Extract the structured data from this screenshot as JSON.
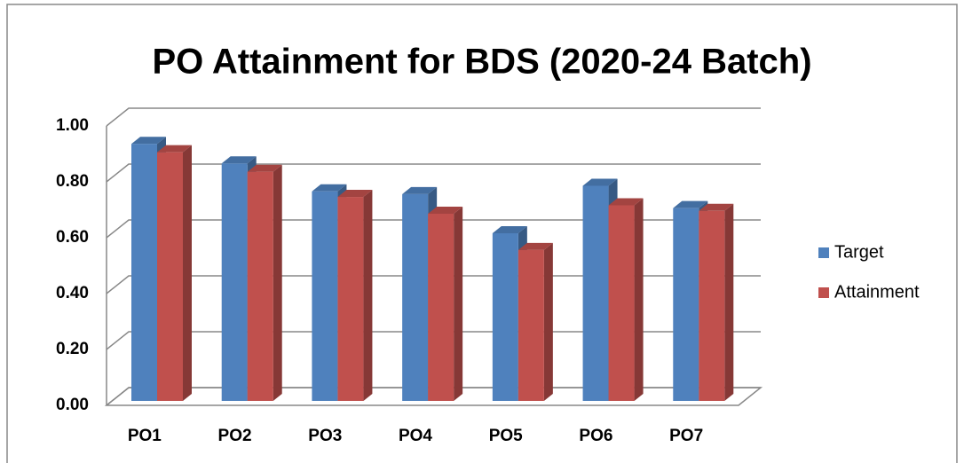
{
  "chart_data": {
    "type": "bar3d",
    "title": "PO Attainment for BDS (2020-24 Batch)",
    "categories": [
      "PO1",
      "PO2",
      "PO3",
      "PO4",
      "PO5",
      "PO6",
      "PO7"
    ],
    "series": [
      {
        "name": "Target",
        "color": "#4f81bd",
        "values": [
          0.92,
          0.85,
          0.75,
          0.74,
          0.6,
          0.77,
          0.69
        ]
      },
      {
        "name": "Attainment",
        "color": "#c0504d",
        "values": [
          0.89,
          0.82,
          0.73,
          0.67,
          0.54,
          0.7,
          0.68
        ]
      }
    ],
    "ylim": [
      0,
      1
    ],
    "yticks": [
      {
        "value": 0,
        "label": "0.00"
      },
      {
        "value": 0.2,
        "label": "0.20"
      },
      {
        "value": 0.4,
        "label": "0.40"
      },
      {
        "value": 0.6,
        "label": "0.60"
      },
      {
        "value": 0.8,
        "label": "0.80"
      },
      {
        "value": 1,
        "label": "1.00"
      }
    ],
    "grid": true,
    "legend": "right"
  }
}
